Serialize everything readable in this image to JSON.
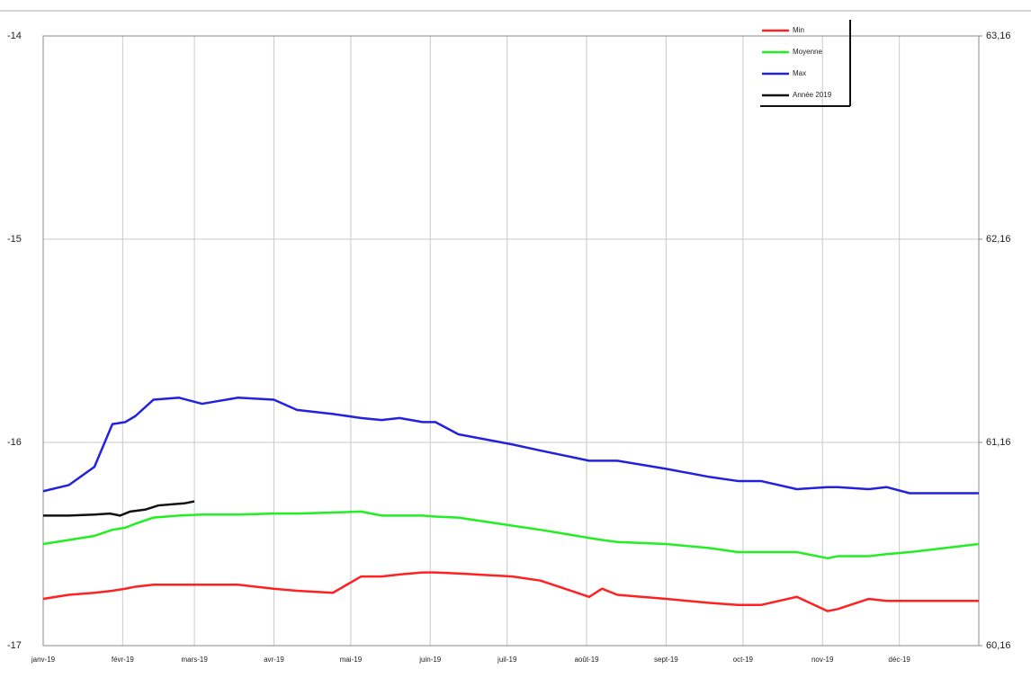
{
  "chart_data": {
    "type": "line",
    "xlim": [
      0,
      365
    ],
    "xticks": [
      {
        "value": 0,
        "label": "janv-19"
      },
      {
        "value": 31,
        "label": "févr-19"
      },
      {
        "value": 59,
        "label": "mars-19"
      },
      {
        "value": 90,
        "label": "avr-19"
      },
      {
        "value": 120,
        "label": "mai-19"
      },
      {
        "value": 151,
        "label": "juin-19"
      },
      {
        "value": 181,
        "label": "juil-19"
      },
      {
        "value": 212,
        "label": "août-19"
      },
      {
        "value": 243,
        "label": "sept-19"
      },
      {
        "value": 273,
        "label": "oct-19"
      },
      {
        "value": 304,
        "label": "nov-19"
      },
      {
        "value": 334,
        "label": "déc-19"
      }
    ],
    "ylim": [
      -17,
      -14
    ],
    "yticks": [
      -17,
      -16,
      -15,
      -14
    ],
    "y2lim": [
      60.16,
      63.16
    ],
    "y2ticks": [
      {
        "value": 60.16,
        "label": "60,16"
      },
      {
        "value": 61.16,
        "label": "61,16"
      },
      {
        "value": 62.16,
        "label": "62,16"
      },
      {
        "value": 63.16,
        "label": "63,16"
      }
    ],
    "grid": true,
    "legend": "top-right",
    "series": [
      {
        "name": "Min",
        "color": "#ff2020",
        "x": [
          0,
          10,
          20,
          27,
          32,
          36,
          43,
          53,
          62,
          76,
          90,
          99,
          113,
          124,
          132,
          139,
          148,
          153,
          162,
          183,
          194,
          213,
          218,
          224,
          243,
          260,
          271,
          280,
          294,
          306,
          310,
          322,
          329,
          338,
          365
        ],
        "values": [
          -16.77,
          -16.75,
          -16.74,
          -16.73,
          -16.72,
          -16.71,
          -16.7,
          -16.7,
          -16.7,
          -16.7,
          -16.72,
          -16.73,
          -16.74,
          -16.66,
          -16.66,
          -16.65,
          -16.64,
          -16.64,
          -16.645,
          -16.66,
          -16.68,
          -16.76,
          -16.72,
          -16.75,
          -16.77,
          -16.79,
          -16.8,
          -16.8,
          -16.76,
          -16.83,
          -16.82,
          -16.77,
          -16.78,
          -16.78,
          -16.78
        ]
      },
      {
        "name": "Moyenne",
        "color": "#22ee22",
        "x": [
          0,
          10,
          20,
          27,
          32,
          36,
          43,
          53,
          62,
          76,
          90,
          99,
          113,
          124,
          132,
          139,
          148,
          153,
          162,
          183,
          194,
          213,
          218,
          224,
          243,
          260,
          271,
          280,
          294,
          306,
          310,
          322,
          329,
          338,
          365
        ],
        "values": [
          -16.5,
          -16.48,
          -16.46,
          -16.43,
          -16.42,
          -16.4,
          -16.37,
          -16.36,
          -16.355,
          -16.355,
          -16.35,
          -16.35,
          -16.345,
          -16.34,
          -16.36,
          -16.36,
          -16.36,
          -16.365,
          -16.37,
          -16.41,
          -16.43,
          -16.47,
          -16.48,
          -16.49,
          -16.5,
          -16.52,
          -16.54,
          -16.54,
          -16.54,
          -16.57,
          -16.56,
          -16.56,
          -16.55,
          -16.54,
          -16.5
        ]
      },
      {
        "name": "Max",
        "color": "#2222dd",
        "x": [
          0,
          10,
          20,
          27,
          32,
          36,
          43,
          53,
          62,
          76,
          90,
          99,
          113,
          124,
          132,
          139,
          148,
          153,
          162,
          183,
          194,
          213,
          218,
          224,
          243,
          260,
          271,
          280,
          294,
          306,
          310,
          322,
          329,
          338,
          365
        ],
        "values": [
          -16.24,
          -16.21,
          -16.12,
          -15.91,
          -15.9,
          -15.87,
          -15.79,
          -15.78,
          -15.81,
          -15.78,
          -15.79,
          -15.84,
          -15.86,
          -15.88,
          -15.89,
          -15.88,
          -15.9,
          -15.9,
          -15.96,
          -16.01,
          -16.04,
          -16.09,
          -16.09,
          -16.09,
          -16.13,
          -16.17,
          -16.19,
          -16.19,
          -16.23,
          -16.22,
          -16.22,
          -16.23,
          -16.22,
          -16.25,
          -16.25
        ]
      },
      {
        "name": "Année 2019",
        "color": "#111111",
        "x": [
          0,
          10,
          20,
          26,
          30,
          34,
          40,
          45,
          55,
          59
        ],
        "values": [
          -16.36,
          -16.36,
          -16.355,
          -16.35,
          -16.36,
          -16.34,
          -16.33,
          -16.31,
          -16.3,
          -16.29
        ]
      }
    ]
  }
}
